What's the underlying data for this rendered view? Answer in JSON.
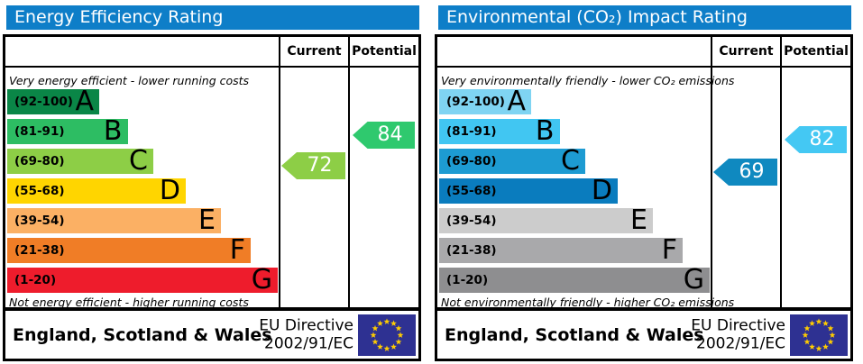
{
  "chart_data": [
    {
      "type": "bar",
      "title": "Energy Efficiency Rating",
      "note_top": "Very energy efficient - lower running costs",
      "note_bottom": "Not energy efficient - higher running costs",
      "columns": {
        "current": "Current",
        "potential": "Potential"
      },
      "bands": [
        {
          "letter": "A",
          "label": "(92-100)",
          "min": 92,
          "max": 100,
          "color": "#0a8647",
          "width_pct": 34
        },
        {
          "letter": "B",
          "label": "(81-91)",
          "min": 81,
          "max": 91,
          "color": "#2dbd63",
          "width_pct": 44.5
        },
        {
          "letter": "C",
          "label": "(69-80)",
          "min": 69,
          "max": 80,
          "color": "#8dce46",
          "width_pct": 54
        },
        {
          "letter": "D",
          "label": "(55-68)",
          "min": 55,
          "max": 68,
          "color": "#ffd500",
          "width_pct": 66
        },
        {
          "letter": "E",
          "label": "(39-54)",
          "min": 39,
          "max": 54,
          "color": "#fbb064",
          "width_pct": 79
        },
        {
          "letter": "F",
          "label": "(21-38)",
          "min": 21,
          "max": 38,
          "color": "#f07d26",
          "width_pct": 90
        },
        {
          "letter": "G",
          "label": "(1-20)",
          "min": 1,
          "max": 20,
          "color": "#ee1c2c",
          "width_pct": 100
        }
      ],
      "current": {
        "value": 72,
        "color": "#8dce46"
      },
      "potential": {
        "value": 84,
        "color": "#2fc96e"
      },
      "colors": {
        "header": "#0e7ec8"
      },
      "footer": {
        "region": "England, Scotland & Wales",
        "directive_line1": "EU Directive",
        "directive_line2": "2002/91/EC",
        "flag_color": "#2e3192",
        "star_color": "#ffcc00"
      },
      "ylim": [
        1,
        100
      ]
    },
    {
      "type": "bar",
      "title": "Environmental (CO₂) Impact Rating",
      "note_top": "Very environmentally friendly - lower CO₂ emissions",
      "note_bottom": "Not environmentally friendly - higher CO₂ emissions",
      "columns": {
        "current": "Current",
        "potential": "Potential"
      },
      "bands": [
        {
          "letter": "A",
          "label": "(92-100)",
          "min": 92,
          "max": 100,
          "color": "#7fd4f2",
          "width_pct": 34
        },
        {
          "letter": "B",
          "label": "(81-91)",
          "min": 81,
          "max": 91,
          "color": "#41c6f2",
          "width_pct": 44.5
        },
        {
          "letter": "C",
          "label": "(69-80)",
          "min": 69,
          "max": 80,
          "color": "#1d9bd2",
          "width_pct": 54
        },
        {
          "letter": "D",
          "label": "(55-68)",
          "min": 55,
          "max": 68,
          "color": "#0a7cbe",
          "width_pct": 66
        },
        {
          "letter": "E",
          "label": "(39-54)",
          "min": 39,
          "max": 54,
          "color": "#cccccc",
          "width_pct": 79
        },
        {
          "letter": "F",
          "label": "(21-38)",
          "min": 21,
          "max": 38,
          "color": "#a9a9ab",
          "width_pct": 90
        },
        {
          "letter": "G",
          "label": "(1-20)",
          "min": 1,
          "max": 20,
          "color": "#8e8e90",
          "width_pct": 100
        }
      ],
      "current": {
        "value": 69,
        "color": "#0f89c0"
      },
      "potential": {
        "value": 82,
        "color": "#44c8f3"
      },
      "colors": {
        "header": "#0e7ec8"
      },
      "footer": {
        "region": "England, Scotland & Wales",
        "directive_line1": "EU Directive",
        "directive_line2": "2002/91/EC",
        "flag_color": "#2e3192",
        "star_color": "#ffcc00"
      },
      "ylim": [
        1,
        100
      ]
    }
  ]
}
